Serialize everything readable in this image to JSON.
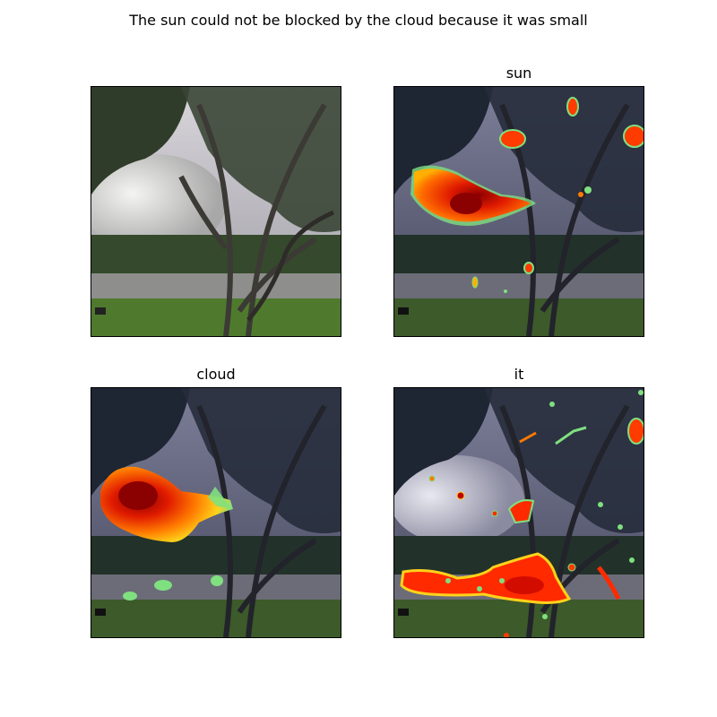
{
  "figure": {
    "title": "The sun could not be blocked by the cloud because it was small"
  },
  "panels": [
    {
      "title": "",
      "content": "original photograph"
    },
    {
      "title": "sun",
      "content": "attention heatmap overlay"
    },
    {
      "title": "cloud",
      "content": "attention heatmap overlay"
    },
    {
      "title": "it",
      "content": "attention heatmap overlay"
    }
  ],
  "colors": {
    "heat_high": "#8b0000",
    "heat_mid": "#ff2a00",
    "heat_low": "#ffd21a",
    "heat_edge": "#7fe07f"
  }
}
